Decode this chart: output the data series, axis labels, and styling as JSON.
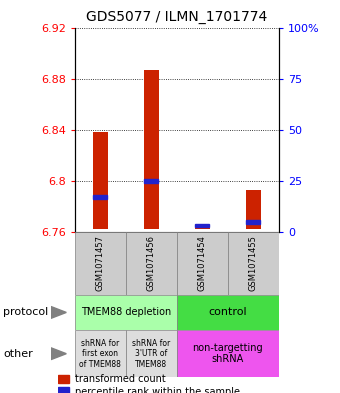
{
  "title": "GDS5077 / ILMN_1701774",
  "samples": [
    "GSM1071457",
    "GSM1071456",
    "GSM1071454",
    "GSM1071455"
  ],
  "bar_bottoms": [
    6.762,
    6.762,
    6.762,
    6.762
  ],
  "bar_tops": [
    6.838,
    6.887,
    6.763,
    6.793
  ],
  "percentile_values": [
    6.787,
    6.8,
    6.765,
    6.768
  ],
  "ylim": [
    6.76,
    6.92
  ],
  "yticks_left": [
    6.76,
    6.8,
    6.84,
    6.88,
    6.92
  ],
  "yticks_right": [
    0,
    25,
    50,
    75,
    100
  ],
  "right_ytick_labels": [
    "0",
    "25",
    "50",
    "75",
    "100%"
  ],
  "bar_color": "#CC2200",
  "percentile_color": "#2222CC",
  "protocol_label1": "TMEM88 depletion",
  "protocol_color1": "#AAFFAA",
  "protocol_label2": "control",
  "protocol_color2": "#44DD44",
  "other_label1": "shRNA for\nfirst exon\nof TMEM88",
  "other_label2": "shRNA for\n3'UTR of\nTMEM88",
  "other_label3": "non-targetting\nshRNA",
  "other_color12": "#DDDDDD",
  "other_color3": "#EE55EE",
  "samp_bg": "#CCCCCC",
  "label_protocol": "protocol",
  "label_other": "other",
  "legend_bar_label": "transformed count",
  "legend_pct_label": "percentile rank within the sample"
}
